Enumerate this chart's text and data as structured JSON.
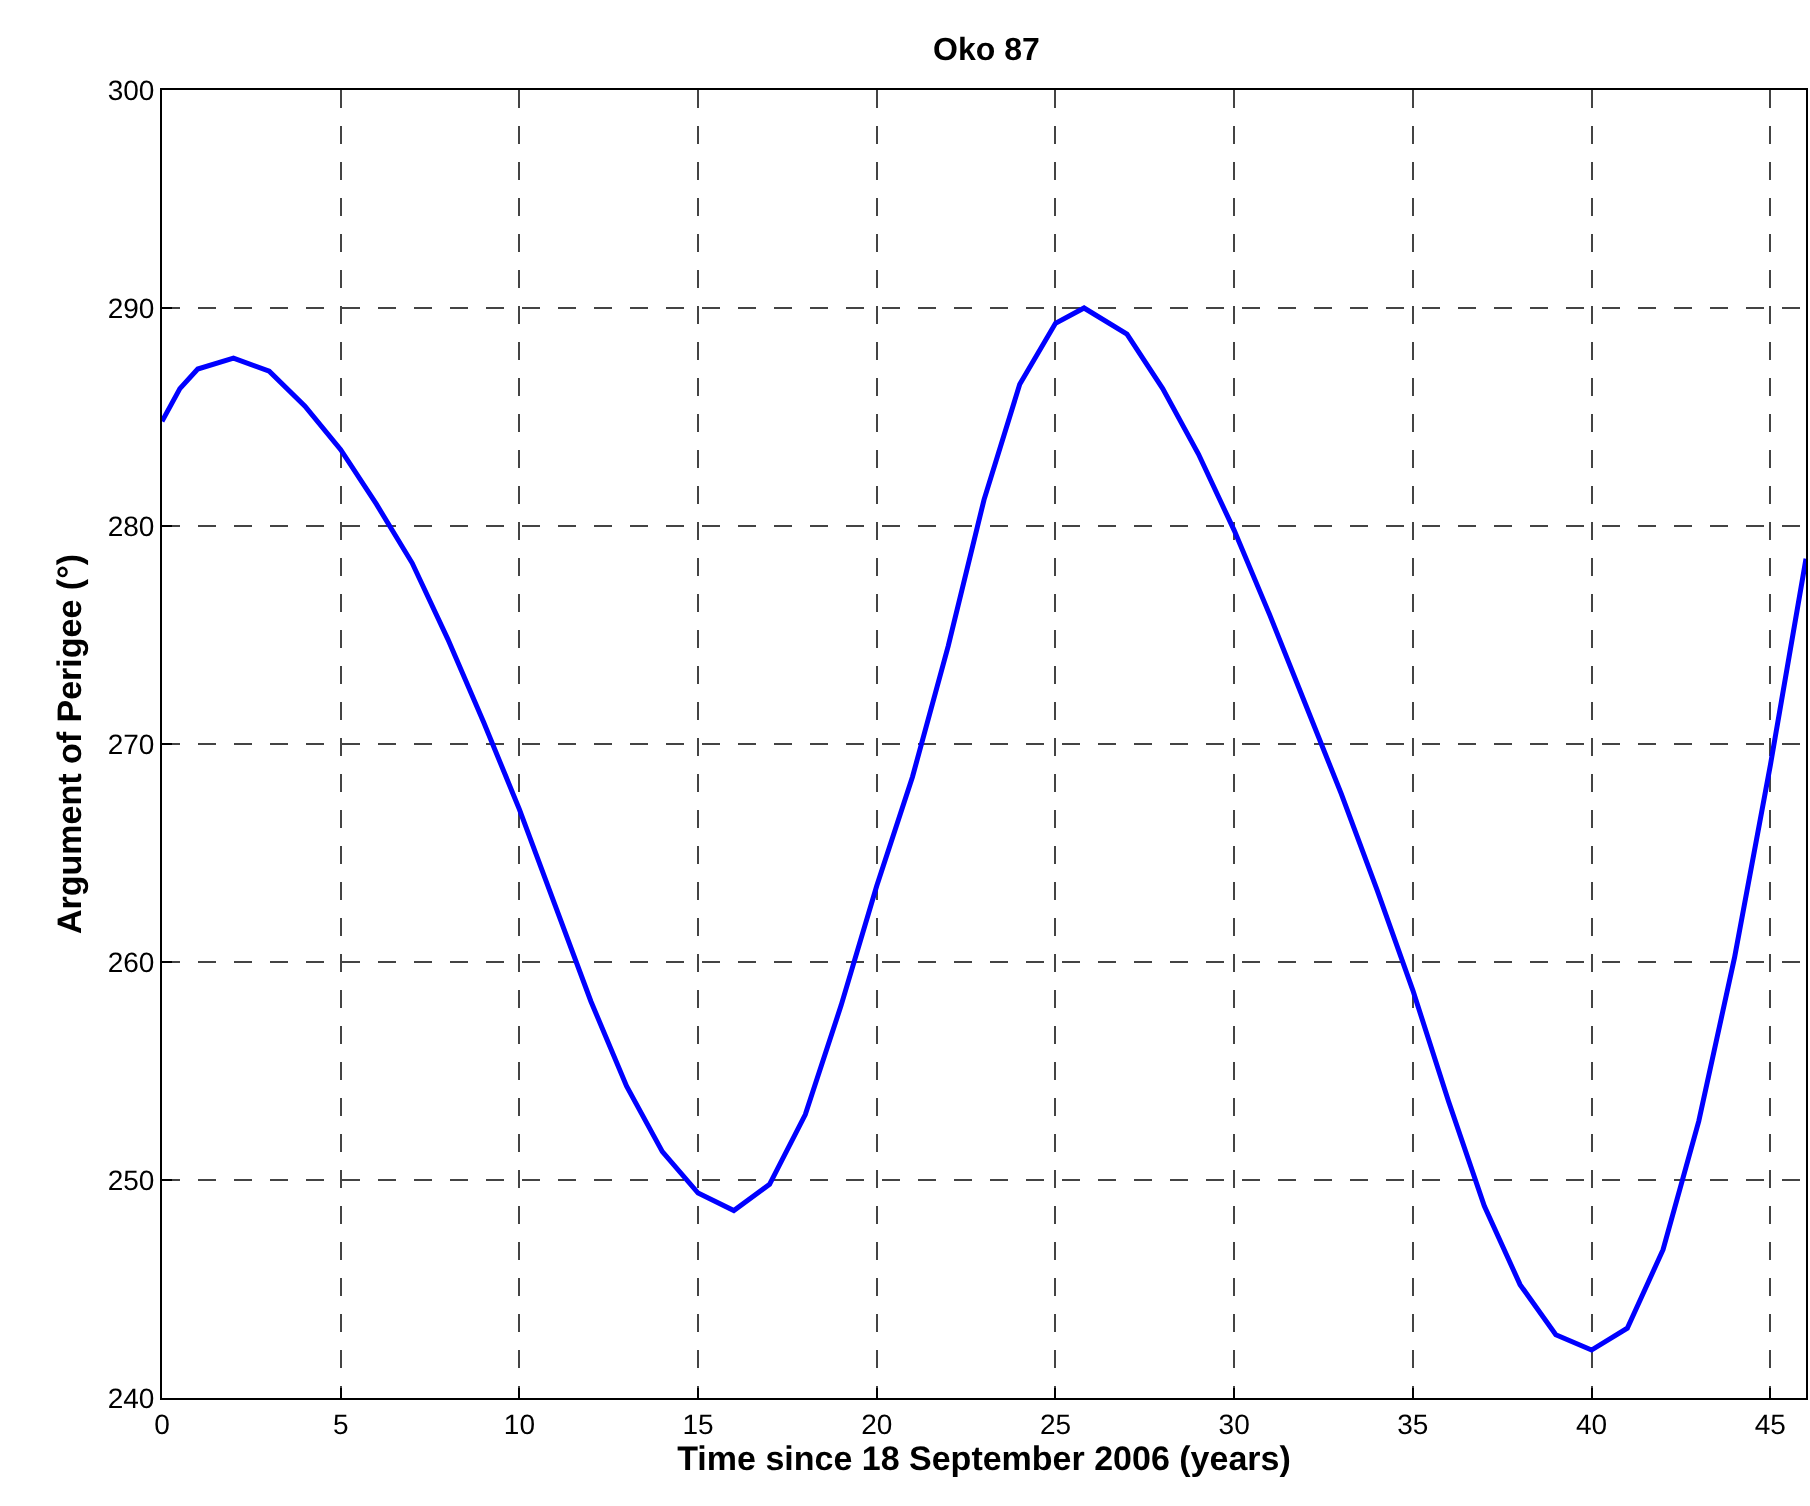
{
  "chart_data": {
    "type": "line",
    "title": "Oko 87",
    "xlabel": "Time since 18 September 2006 (years)",
    "ylabel": "Argument of Perigee (°)",
    "x": [
      0,
      0.5,
      1,
      2,
      3,
      4,
      5,
      6,
      7,
      8,
      9,
      10,
      11,
      12,
      13,
      14,
      15,
      16,
      17,
      18,
      19,
      20,
      21,
      22,
      23,
      24,
      25,
      25.8,
      27,
      28,
      29,
      30,
      31,
      32,
      33,
      34,
      35,
      36,
      37,
      38,
      39,
      40,
      41,
      42,
      43,
      44,
      45,
      46
    ],
    "series": [
      {
        "color": "#0000ff",
        "values": [
          284.8,
          286.3,
          287.2,
          287.7,
          287.1,
          285.5,
          283.5,
          281.0,
          278.3,
          274.8,
          271.0,
          267.0,
          262.6,
          258.2,
          254.3,
          251.3,
          249.4,
          248.6,
          249.8,
          253.0,
          258.0,
          263.5,
          268.5,
          274.5,
          281.2,
          286.5,
          289.3,
          290.0,
          288.8,
          286.3,
          283.3,
          279.8,
          275.9,
          271.8,
          267.7,
          263.3,
          258.7,
          253.6,
          248.8,
          245.2,
          242.9,
          242.2,
          243.2,
          246.8,
          252.7,
          260.2,
          269.0,
          278.5
        ]
      }
    ],
    "xlim": [
      0,
      46
    ],
    "ylim": [
      240,
      300
    ],
    "xticks": [
      0,
      5,
      10,
      15,
      20,
      25,
      30,
      35,
      40,
      45
    ],
    "yticks": [
      240,
      250,
      260,
      270,
      280,
      290,
      300
    ],
    "grid": true,
    "line_style": "solid"
  }
}
